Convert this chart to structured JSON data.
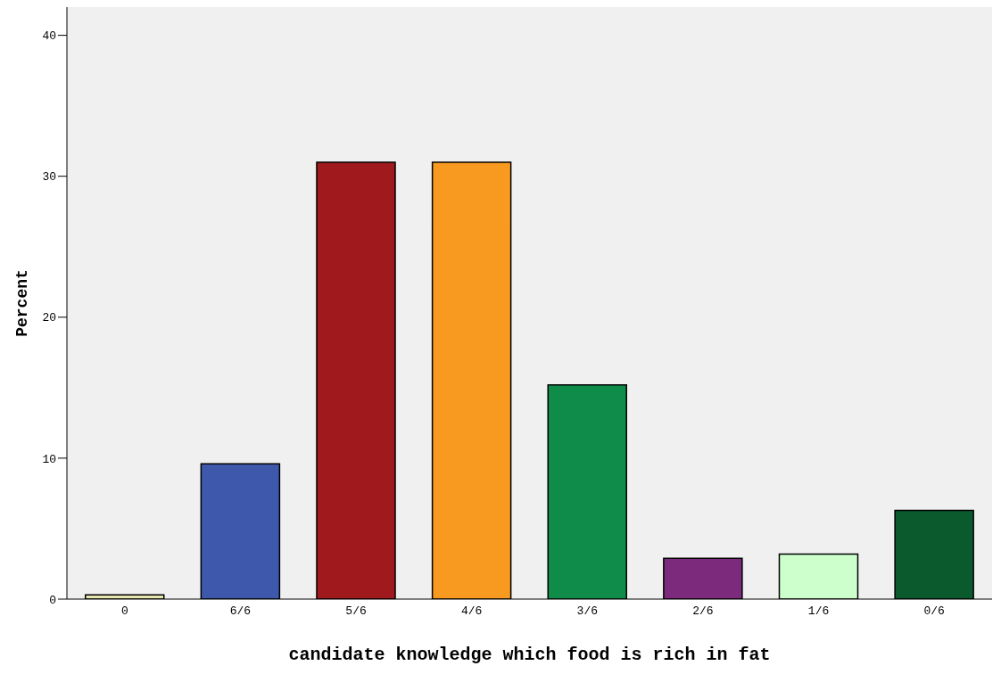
{
  "chart_data": {
    "type": "bar",
    "xlabel": "candidate knowledge which food is rich in  fat",
    "ylabel": "Percent",
    "categories": [
      "0",
      "6/6",
      "5/6",
      "4/6",
      "3/6",
      "2/6",
      "1/6",
      "0/6"
    ],
    "values": [
      0.3,
      9.6,
      31.0,
      31.0,
      15.2,
      2.9,
      3.2,
      6.3
    ],
    "colors": [
      "#e6e6b0",
      "#3e58ac",
      "#a0191d",
      "#f89a20",
      "#0f8c4a",
      "#7b2a7c",
      "#ccffcc",
      "#0b5a2e"
    ],
    "ylim": [
      0,
      42
    ],
    "yticks": [
      0,
      10,
      20,
      30,
      40
    ],
    "grid": false,
    "legend": false
  }
}
